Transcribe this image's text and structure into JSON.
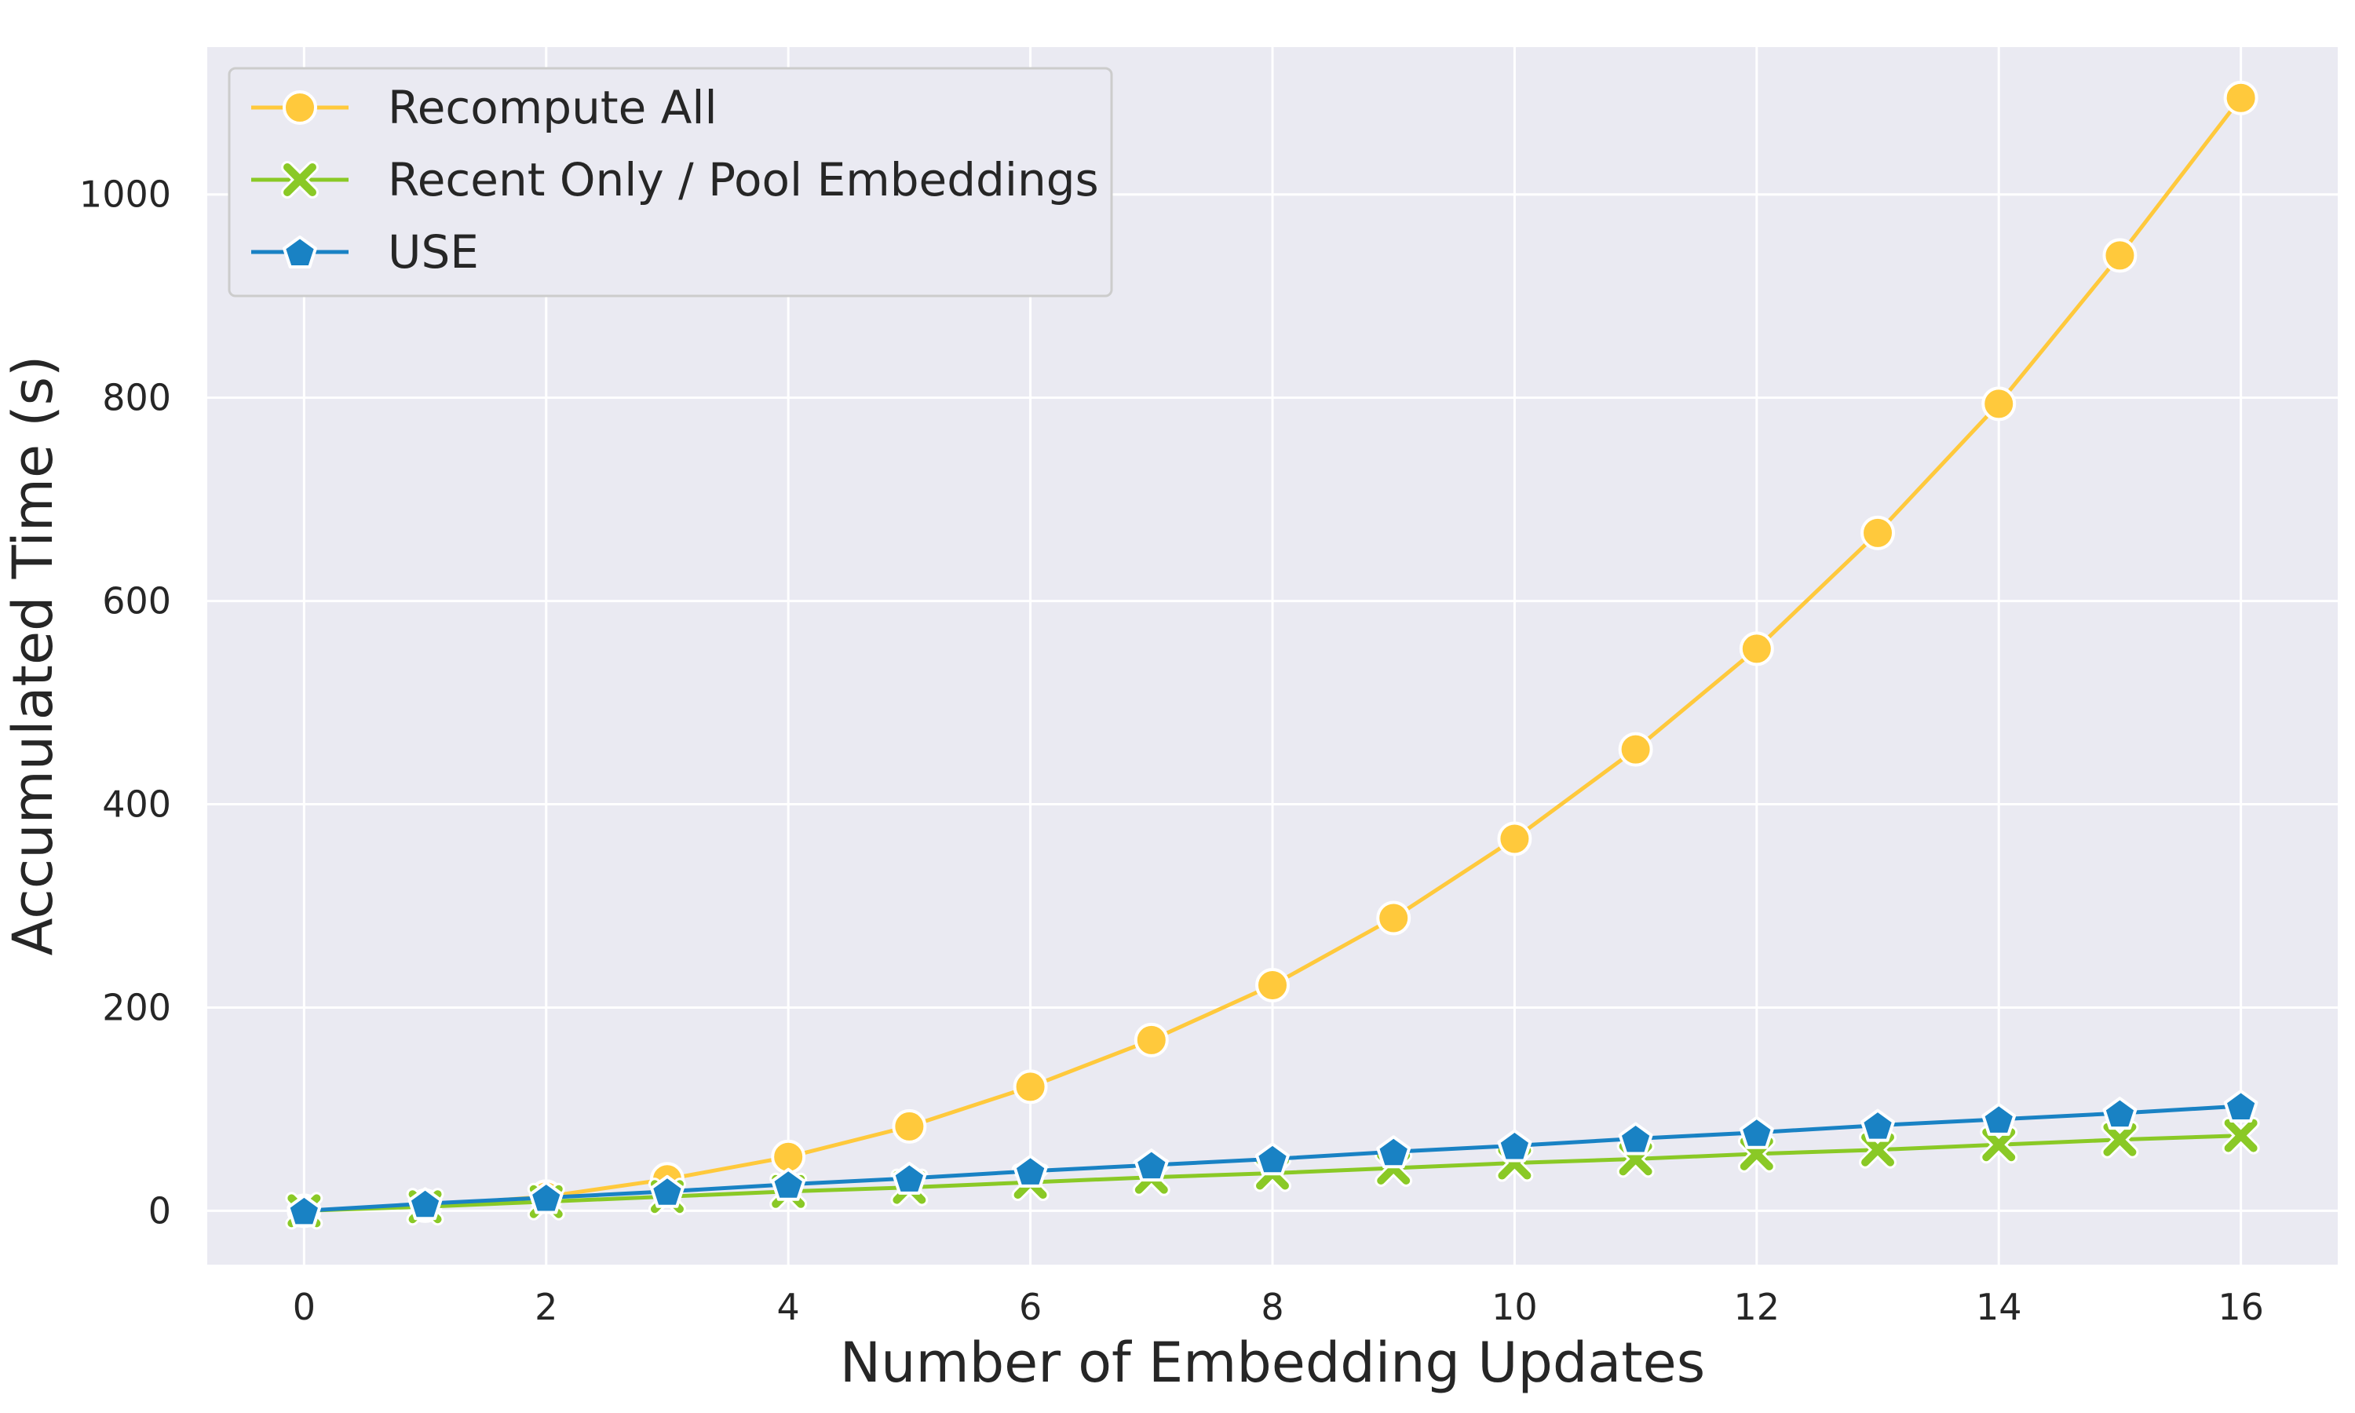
{
  "chart_data": {
    "type": "line",
    "title": "",
    "xlabel": "Number of Embedding Updates",
    "ylabel": "Accumulated Time (s)",
    "xlim": [
      -0.8,
      16.8
    ],
    "ylim": [
      -53,
      1145
    ],
    "xticks": [
      0,
      2,
      4,
      6,
      8,
      10,
      12,
      14,
      16
    ],
    "yticks": [
      0,
      200,
      400,
      600,
      800,
      1000
    ],
    "grid": true,
    "background": "#EAEAF2",
    "legend_position": "top-left",
    "x": [
      0,
      1,
      2,
      3,
      4,
      5,
      6,
      7,
      8,
      9,
      10,
      11,
      12,
      13,
      14,
      15,
      16
    ],
    "series": [
      {
        "name": "Recompute All",
        "color": "#FFC93C",
        "marker": "circle",
        "values": [
          0,
          5,
          14,
          31,
          53,
          83,
          122,
          168,
          222,
          288,
          366,
          454,
          553,
          667,
          794,
          940,
          1095
        ]
      },
      {
        "name": "Recent Only / Pool Embeddings",
        "color": "#8AC926",
        "marker": "x",
        "values": [
          0,
          4,
          9,
          14,
          19,
          23,
          28,
          33,
          37,
          42,
          47,
          51,
          56,
          60,
          65,
          70,
          74
        ]
      },
      {
        "name": "USE",
        "color": "#1982C4",
        "marker": "pentagon",
        "values": [
          0,
          7,
          13,
          19,
          26,
          32,
          39,
          45,
          51,
          58,
          64,
          71,
          77,
          84,
          90,
          96,
          103
        ]
      }
    ]
  }
}
